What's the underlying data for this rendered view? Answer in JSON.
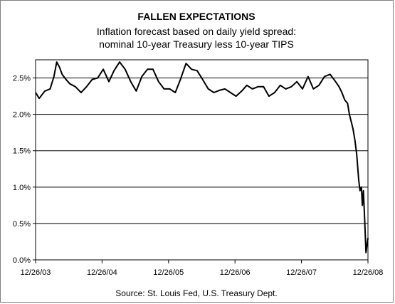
{
  "chart_data": {
    "type": "line",
    "title": "FALLEN EXPECTATIONS",
    "subtitle_lines": [
      "Inflation forecast based on daily yield spread:",
      "nominal 10-year Treasury less 10-year TIPS"
    ],
    "source": "Source: St. Louis Fed, U.S. Treasury Dept.",
    "xlabel": "",
    "ylabel": "",
    "x_tick_labels": [
      "12/26/03",
      "12/26/04",
      "12/26/05",
      "12/26/06",
      "12/26/07",
      "12/26/08"
    ],
    "y_tick_labels": [
      "0.0%",
      "0.5%",
      "1.0%",
      "1.5%",
      "2.0%",
      "2.5%"
    ],
    "ylim": [
      0,
      2.75
    ],
    "xlim": [
      "2003-12-26",
      "2008-12-26"
    ],
    "grid": "horizontal",
    "legend": "none",
    "line_color": "#000000",
    "series": [
      {
        "x": [
          "2003-12-26",
          "2004-01-15",
          "2004-02-15",
          "2004-03-15",
          "2004-04-05",
          "2004-04-20",
          "2004-05-05",
          "2004-05-20",
          "2004-06-10",
          "2004-07-01",
          "2004-08-01",
          "2004-09-01",
          "2004-10-01",
          "2004-11-01",
          "2004-12-01",
          "2005-01-01",
          "2005-02-01",
          "2005-03-01",
          "2005-04-01",
          "2005-05-01",
          "2005-06-01",
          "2005-07-01",
          "2005-08-01",
          "2005-09-01",
          "2005-10-01",
          "2005-11-01",
          "2005-12-01",
          "2006-01-01",
          "2006-02-01",
          "2006-03-01",
          "2006-04-01",
          "2006-05-01",
          "2006-06-01",
          "2006-07-01",
          "2006-08-01",
          "2006-09-01",
          "2006-10-01",
          "2006-11-01",
          "2006-12-01",
          "2007-01-01",
          "2007-02-01",
          "2007-03-01",
          "2007-04-01",
          "2007-05-01",
          "2007-06-01",
          "2007-07-01",
          "2007-08-01",
          "2007-09-01",
          "2007-10-01",
          "2007-11-01",
          "2007-12-01",
          "2008-01-01",
          "2008-02-01",
          "2008-03-01",
          "2008-04-01",
          "2008-05-01",
          "2008-06-01",
          "2008-07-01",
          "2008-07-20",
          "2008-08-05",
          "2008-08-20",
          "2008-09-05",
          "2008-09-15",
          "2008-09-25",
          "2008-10-05",
          "2008-10-15",
          "2008-10-25",
          "2008-11-05",
          "2008-11-12",
          "2008-11-20",
          "2008-11-25",
          "2008-12-01",
          "2008-12-08",
          "2008-12-15",
          "2008-12-26"
        ],
        "values": [
          2.3,
          2.22,
          2.32,
          2.35,
          2.52,
          2.72,
          2.65,
          2.55,
          2.48,
          2.42,
          2.38,
          2.3,
          2.38,
          2.48,
          2.5,
          2.62,
          2.45,
          2.6,
          2.72,
          2.62,
          2.45,
          2.32,
          2.52,
          2.62,
          2.62,
          2.45,
          2.35,
          2.35,
          2.3,
          2.48,
          2.7,
          2.62,
          2.6,
          2.48,
          2.35,
          2.3,
          2.33,
          2.35,
          2.3,
          2.25,
          2.32,
          2.4,
          2.35,
          2.38,
          2.38,
          2.25,
          2.3,
          2.4,
          2.35,
          2.38,
          2.45,
          2.35,
          2.52,
          2.35,
          2.4,
          2.52,
          2.55,
          2.45,
          2.38,
          2.3,
          2.2,
          2.15,
          2.0,
          1.9,
          1.8,
          1.65,
          1.45,
          1.1,
          0.95,
          1.0,
          0.75,
          0.95,
          0.55,
          0.1,
          0.3
        ]
      }
    ]
  }
}
